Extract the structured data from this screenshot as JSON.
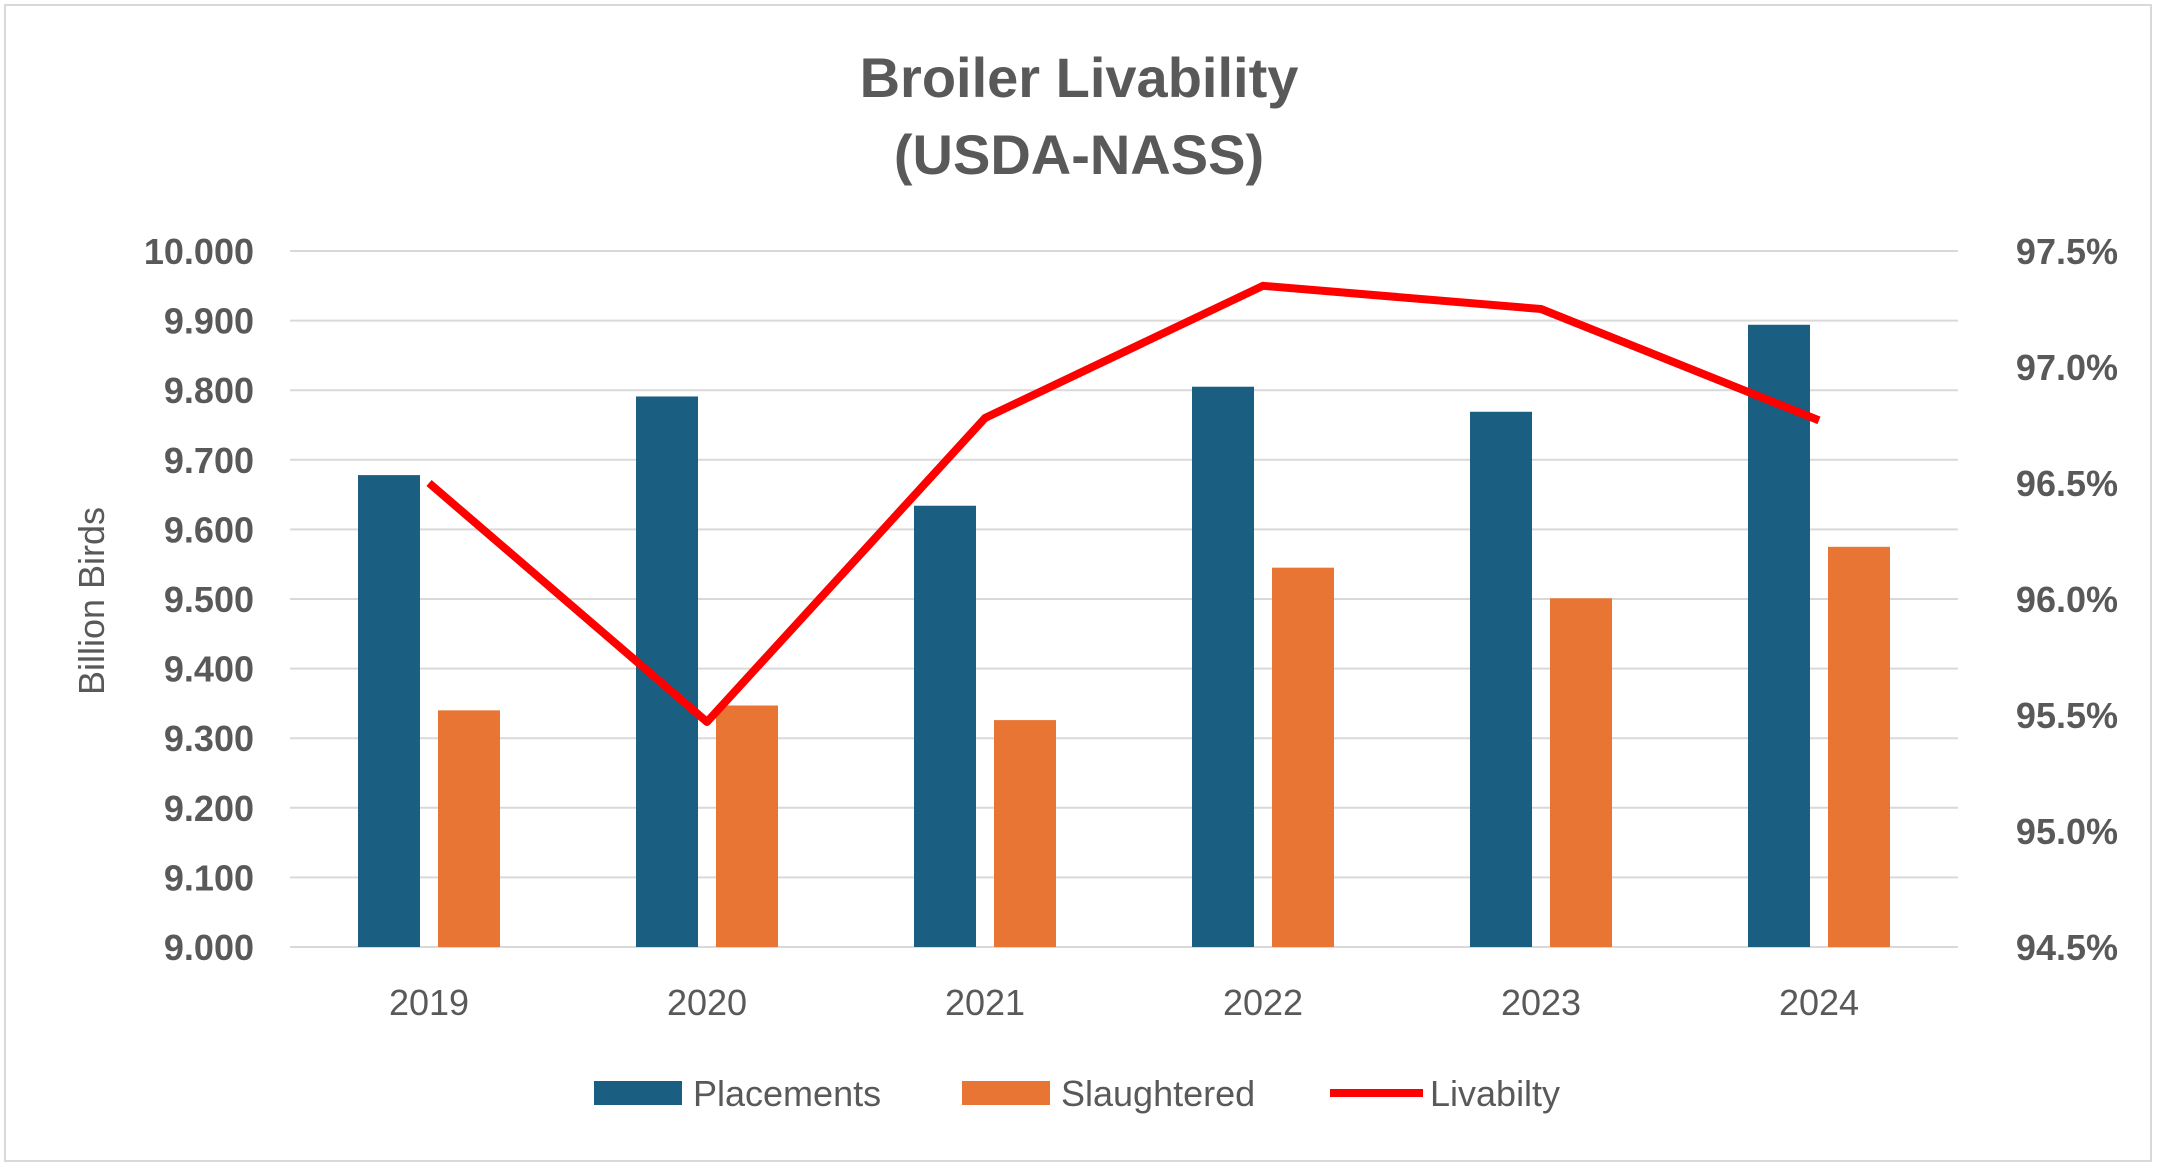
{
  "chart_data": {
    "type": "bar",
    "title_lines": [
      "Broiler Livability",
      "(USDA-NASS)"
    ],
    "ylabel": "Billion Birds",
    "categories": [
      "2019",
      "2020",
      "2021",
      "2022",
      "2023",
      "2024"
    ],
    "ylim": [
      9.0,
      10.0
    ],
    "y_ticks": [
      "9.000",
      "9.100",
      "9.200",
      "9.300",
      "9.400",
      "9.500",
      "9.600",
      "9.700",
      "9.800",
      "9.900",
      "10.000"
    ],
    "y2lim": [
      94.5,
      97.5
    ],
    "y2_ticks": [
      "94.5%",
      "95.0%",
      "95.5%",
      "96.0%",
      "96.5%",
      "97.0%",
      "97.5%"
    ],
    "series": [
      {
        "name": "Placements",
        "type": "bar",
        "axis": "left",
        "color": "#1a5f82",
        "values": [
          9.678,
          9.791,
          9.634,
          9.805,
          9.769,
          9.894
        ]
      },
      {
        "name": "Slaughtered",
        "type": "bar",
        "axis": "left",
        "color": "#e97534",
        "values": [
          9.34,
          9.347,
          9.326,
          9.545,
          9.501,
          9.575
        ]
      },
      {
        "name": "Livabilty",
        "type": "line",
        "axis": "right",
        "color": "#ff0000",
        "values": [
          96.5,
          95.47,
          96.78,
          97.35,
          97.25,
          96.77
        ]
      }
    ],
    "grid": true,
    "legend_position": "bottom"
  }
}
